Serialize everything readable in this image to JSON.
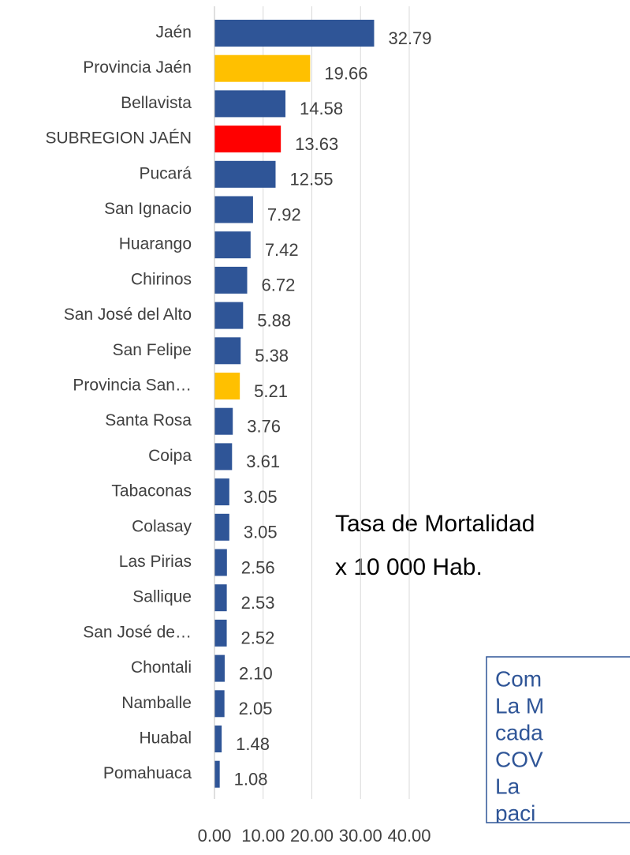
{
  "chart_data": {
    "type": "bar",
    "orientation": "horizontal",
    "categories": [
      "Jaén",
      "Provincia Jaén",
      "Bellavista",
      "SUBREGION JAÉN",
      "Pucará",
      "San Ignacio",
      "Huarango",
      "Chirinos",
      "San José del Alto",
      "San Felipe",
      "Provincia San…",
      "Santa Rosa",
      "Coipa",
      "Tabaconas",
      "Colasay",
      "Las Pirias",
      "Sallique",
      "San José de…",
      "Chontali",
      "Namballe",
      "Huabal",
      "Pomahuaca"
    ],
    "values": [
      32.79,
      19.66,
      14.58,
      13.63,
      12.55,
      7.92,
      7.42,
      6.72,
      5.88,
      5.38,
      5.21,
      3.76,
      3.61,
      3.05,
      3.05,
      2.56,
      2.53,
      2.52,
      2.1,
      2.05,
      1.48,
      1.08
    ],
    "value_labels": [
      "32.79",
      "19.66",
      "14.58",
      "13.63",
      "12.55",
      "7.92",
      "7.42",
      "6.72",
      "5.88",
      "5.38",
      "5.21",
      "3.76",
      "3.61",
      "3.05",
      "3.05",
      "2.56",
      "2.53",
      "2.52",
      "2.10",
      "2.05",
      "1.48",
      "1.08"
    ],
    "colors": [
      "#2f5597",
      "#ffc000",
      "#2f5597",
      "#ff0000",
      "#2f5597",
      "#2f5597",
      "#2f5597",
      "#2f5597",
      "#2f5597",
      "#2f5597",
      "#ffc000",
      "#2f5597",
      "#2f5597",
      "#2f5597",
      "#2f5597",
      "#2f5597",
      "#2f5597",
      "#2f5597",
      "#2f5597",
      "#2f5597",
      "#2f5597",
      "#2f5597"
    ],
    "xlim": [
      0,
      40
    ],
    "xticks": [
      {
        "value": 0,
        "label": "0.00"
      },
      {
        "value": 10,
        "label": "10.00"
      },
      {
        "value": 20,
        "label": "20.00"
      },
      {
        "value": 30,
        "label": "30.00"
      },
      {
        "value": 40,
        "label": "40.00"
      }
    ],
    "grid": true,
    "annotations": [
      "Tasa de Mortalidad",
      "x 10 000 Hab."
    ]
  },
  "note_box": {
    "lines": [
      "Com",
      "La M",
      "cada",
      "COV",
      "La",
      "paci"
    ]
  }
}
